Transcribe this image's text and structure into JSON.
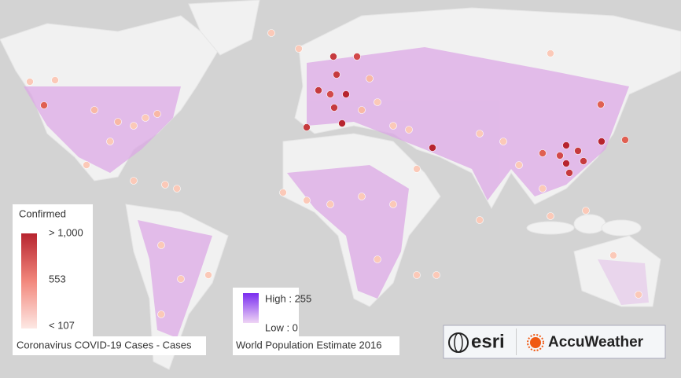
{
  "legend_cases": {
    "title": "Confirmed",
    "labels": [
      "> 1,000",
      "553",
      "< 107"
    ],
    "caption": "Coronavirus COVID-19 Cases - Cases"
  },
  "legend_population": {
    "high": "High : 255",
    "low": "Low : 0",
    "caption": "World Population Estimate 2016"
  },
  "logos": {
    "esri": "esri",
    "accuweather": "AccuWeather"
  }
}
